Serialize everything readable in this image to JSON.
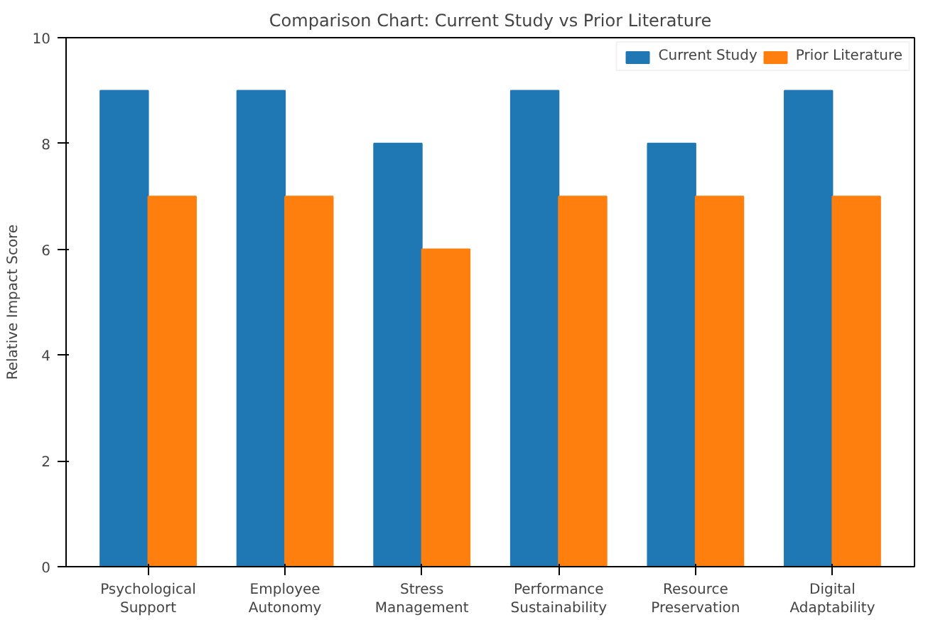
{
  "chart_data": {
    "type": "bar",
    "title": "Comparison Chart: Current Study vs Prior Literature",
    "ylabel": "Relative Impact Score",
    "categories": [
      "Psychological Support",
      "Employee Autonomy",
      "Stress Management",
      "Performance Sustainability",
      "Resource Preservation",
      "Digital Adaptability"
    ],
    "series": [
      {
        "name": "Current Study",
        "color": "#1f77b4",
        "values": [
          9,
          9,
          8,
          9,
          8,
          9
        ]
      },
      {
        "name": "Prior Literature",
        "color": "#ff7f0e",
        "values": [
          7,
          7,
          6,
          7,
          7,
          7
        ]
      }
    ],
    "ylim": [
      0,
      10
    ],
    "yticks": [
      0,
      2,
      4,
      6,
      8,
      10
    ],
    "grid": false,
    "legend": "top right"
  }
}
